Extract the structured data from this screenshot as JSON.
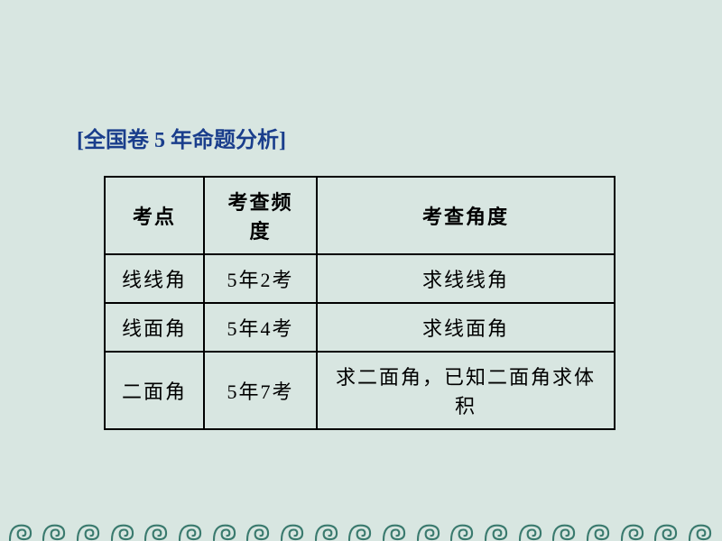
{
  "title": "[全国卷 5 年命题分析]",
  "table": {
    "columns": [
      "考点",
      "考查频度",
      "考查角度"
    ],
    "rows": [
      [
        "线线角",
        "5年2考",
        "求线线角"
      ],
      [
        "线面角",
        "5年4考",
        "求线面角"
      ],
      [
        "二面角",
        "5年7考",
        "求二面角，已知二面角求体积"
      ]
    ],
    "column_widths": [
      "col1",
      "col2",
      "col3"
    ],
    "border_color": "#000000",
    "cell_fontsize": 22,
    "background_color": "#d8e6e1"
  },
  "styling": {
    "page_background": "#d8e6e1",
    "title_color": "#1a3e8c",
    "title_fontsize": 24,
    "spiral_color": "#3a7a6e",
    "spiral_count": 21
  }
}
